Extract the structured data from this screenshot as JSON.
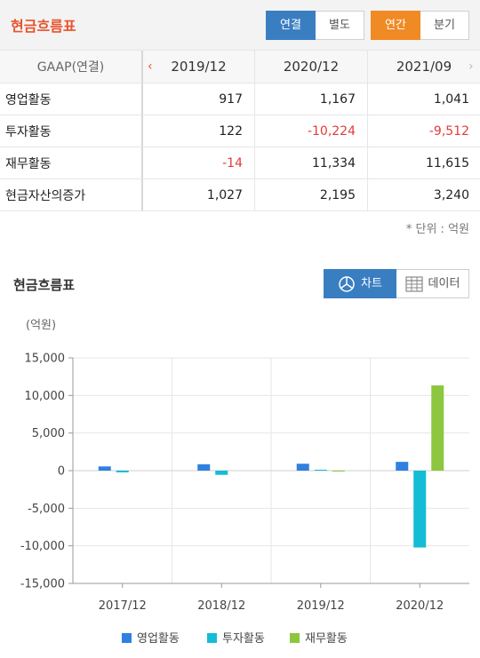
{
  "header": {
    "title": "현금흐름표",
    "consolidation_options": [
      {
        "label": "연결",
        "active": true
      },
      {
        "label": "별도",
        "active": false
      }
    ],
    "period_options": [
      {
        "label": "연간",
        "active": true
      },
      {
        "label": "분기",
        "active": false
      }
    ]
  },
  "table": {
    "header_label": "GAAP(연결)",
    "prev_arrow": "‹",
    "next_arrow": "›",
    "columns": [
      "2019/12",
      "2020/12",
      "2021/09"
    ],
    "rows": [
      {
        "label": "영업활동",
        "values": [
          "917",
          "1,167",
          "1,041"
        ],
        "negative": [
          false,
          false,
          false
        ]
      },
      {
        "label": "투자활동",
        "values": [
          "122",
          "-10,224",
          "-9,512"
        ],
        "negative": [
          false,
          true,
          true
        ]
      },
      {
        "label": "재무활동",
        "values": [
          "-14",
          "11,334",
          "11,615"
        ],
        "negative": [
          true,
          false,
          false
        ]
      },
      {
        "label": "현금자산의증가",
        "values": [
          "1,027",
          "2,195",
          "3,240"
        ],
        "negative": [
          false,
          false,
          false
        ]
      }
    ],
    "unit_note": "* 단위 : 억원"
  },
  "chart_section": {
    "title": "현금흐름표",
    "chart_button": "차트",
    "data_button": "데이터",
    "chart_icon": "pie-chart-icon",
    "data_icon": "table-grid-icon"
  },
  "chart_data": {
    "type": "bar",
    "unit_label": "(억원)",
    "categories": [
      "2017/12",
      "2018/12",
      "2019/12",
      "2020/12"
    ],
    "series": [
      {
        "name": "영업활동",
        "color": "#2f80e0",
        "values": [
          560,
          850,
          917,
          1167
        ]
      },
      {
        "name": "투자활동",
        "color": "#14bcd6",
        "values": [
          -230,
          -560,
          122,
          -10224
        ]
      },
      {
        "name": "재무활동",
        "color": "#8dc63f",
        "values": [
          null,
          null,
          -14,
          11334
        ]
      }
    ],
    "ylim": [
      -15000,
      15000
    ],
    "yticks": [
      15000,
      10000,
      5000,
      0,
      -5000,
      -10000,
      -15000
    ],
    "ytick_labels": [
      "15,000",
      "10,000",
      "5,000",
      "0",
      "-5,000",
      "-10,000",
      "-15,000"
    ],
    "grid": true,
    "legend_position": "bottom"
  }
}
